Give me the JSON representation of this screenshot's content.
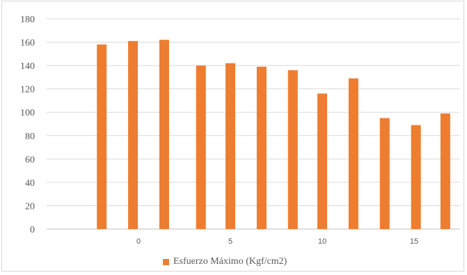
{
  "chart_data": {
    "type": "bar",
    "x": [
      -2,
      -0.3,
      1.4,
      3.4,
      5,
      6.7,
      8.4,
      10,
      11.7,
      13.4,
      15.1,
      16.7
    ],
    "series": [
      {
        "name": "Esfuerzo Máximo (Kgf/cm2)",
        "color": "#ed7d31",
        "values": [
          158,
          161,
          162,
          140,
          142,
          139,
          136,
          116,
          129,
          95,
          89,
          99
        ]
      }
    ],
    "ylim": [
      0,
      180
    ],
    "yticks": [
      "0",
      "20",
      "40",
      "60",
      "80",
      "100",
      "120",
      "140",
      "160",
      "180"
    ],
    "xlim": [
      -5,
      17.5
    ],
    "xticks": [
      "0",
      "5",
      "10",
      "15"
    ],
    "xtick_values": [
      0,
      5,
      10,
      15
    ],
    "grid": true,
    "legend_position": "bottom"
  }
}
